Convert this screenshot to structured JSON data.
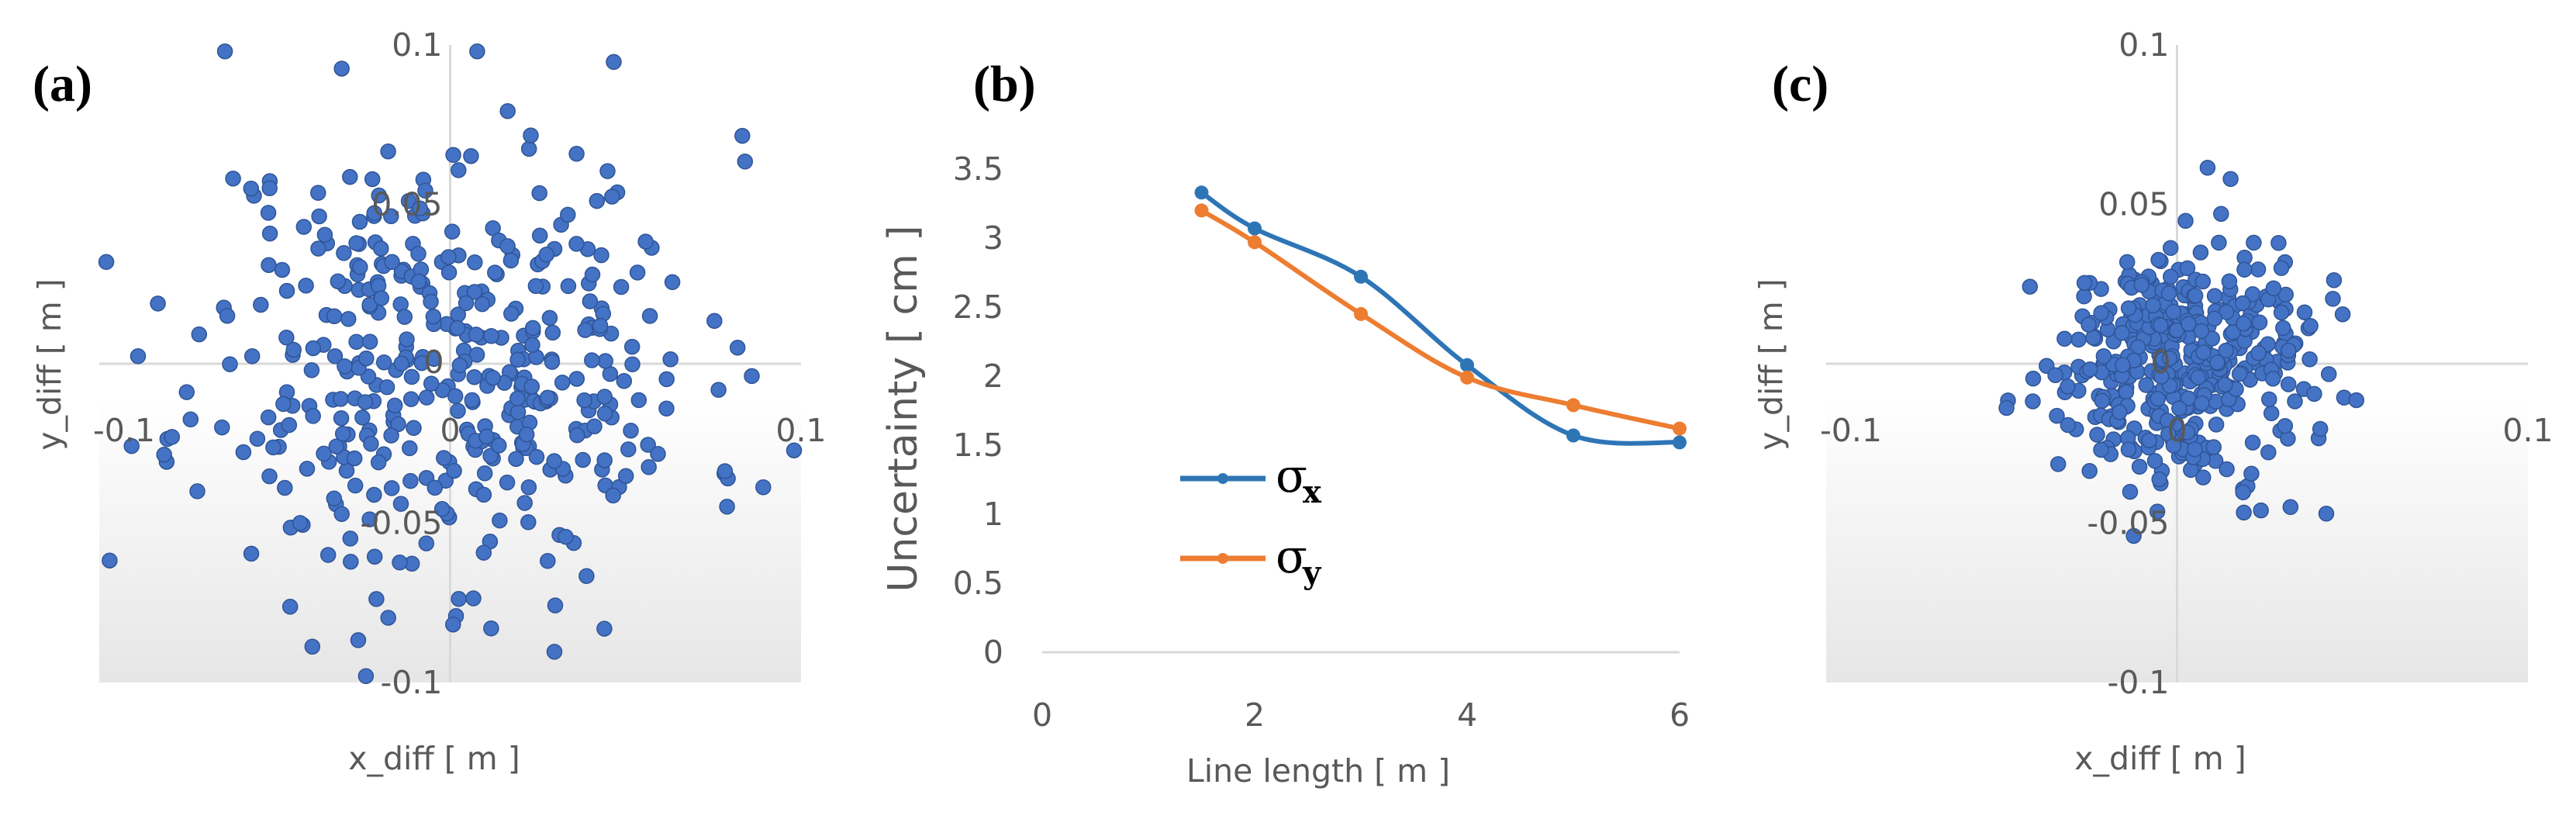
{
  "colors": {
    "scatter": "#4472C4",
    "scatter_edge": "#2F5597",
    "sigma_x": "#2E75B6",
    "sigma_y": "#ED7D31",
    "axis": "#D9D9D9",
    "text": "#595959",
    "plot_bg_top": "#FFFFFF",
    "plot_bg_bottom": "#E8E8E8"
  },
  "chart_data": [
    {
      "id": "a",
      "type": "scatter",
      "panel_label": "(a)",
      "title": "",
      "xlabel": "x_diff [ m ]",
      "ylabel": "y_diff [ m ]",
      "xlim": [
        -0.1,
        0.1
      ],
      "ylim": [
        -0.1,
        0.1
      ],
      "x_ticks": [
        {
          "v": -0.1,
          "t": "-0.1"
        },
        {
          "v": 0,
          "t": "0"
        },
        {
          "v": 0.1,
          "t": "0.1"
        }
      ],
      "y_ticks": [
        {
          "v": 0.1,
          "t": "0.1"
        },
        {
          "v": 0.05,
          "t": "0.05"
        },
        {
          "v": 0,
          "t": "0"
        },
        {
          "v": -0.05,
          "t": "-0.05"
        },
        {
          "v": -0.1,
          "t": "-0.1"
        }
      ],
      "grid": false,
      "point_count": 420,
      "spread_sd": 0.036,
      "seed": 11
    },
    {
      "id": "b",
      "type": "line",
      "panel_label": "(b)",
      "title": "",
      "xlabel": "Line length [ m ]",
      "ylabel": "Uncertainty [ cm ]",
      "xlim": [
        0,
        6
      ],
      "ylim": [
        0,
        3.5
      ],
      "x_ticks": [
        {
          "v": 0,
          "t": "0"
        },
        {
          "v": 2,
          "t": "2"
        },
        {
          "v": 4,
          "t": "4"
        },
        {
          "v": 6,
          "t": "6"
        }
      ],
      "y_ticks": [
        {
          "v": 0,
          "t": "0"
        },
        {
          "v": 0.5,
          "t": "0.5"
        },
        {
          "v": 1,
          "t": "1"
        },
        {
          "v": 1.5,
          "t": "1.5"
        },
        {
          "v": 2,
          "t": "2"
        },
        {
          "v": 2.5,
          "t": "2.5"
        },
        {
          "v": 3,
          "t": "3"
        },
        {
          "v": 3.5,
          "t": "3.5"
        }
      ],
      "grid": false,
      "legend_position": "center-left",
      "series": [
        {
          "name": "σx",
          "symbol": "σ",
          "sub": "x",
          "color_key": "sigma_x",
          "x": [
            1.5,
            2,
            3,
            4,
            5,
            6
          ],
          "values": [
            3.33,
            3.07,
            2.72,
            2.08,
            1.57,
            1.52
          ]
        },
        {
          "name": "σy",
          "symbol": "σ",
          "sub": "y",
          "color_key": "sigma_y",
          "x": [
            1.5,
            2,
            3,
            4,
            5,
            6
          ],
          "values": [
            3.2,
            2.97,
            2.45,
            1.99,
            1.79,
            1.62
          ]
        }
      ]
    },
    {
      "id": "c",
      "type": "scatter",
      "panel_label": "(c)",
      "title": "",
      "xlabel": "x_diff [ m ]",
      "ylabel": "y_diff [ m ]",
      "xlim": [
        -0.1,
        0.1
      ],
      "ylim": [
        -0.1,
        0.1
      ],
      "x_ticks": [
        {
          "v": -0.1,
          "t": "-0.1"
        },
        {
          "v": 0,
          "t": "0"
        },
        {
          "v": 0.1,
          "t": "0.1"
        }
      ],
      "y_ticks": [
        {
          "v": 0.1,
          "t": "0.1"
        },
        {
          "v": 0.05,
          "t": "0.05"
        },
        {
          "v": 0,
          "t": "0"
        },
        {
          "v": -0.05,
          "t": "-0.05"
        },
        {
          "v": -0.1,
          "t": "-0.1"
        }
      ],
      "grid": false,
      "point_count": 420,
      "spread_sd": 0.018,
      "seed": 29
    }
  ]
}
